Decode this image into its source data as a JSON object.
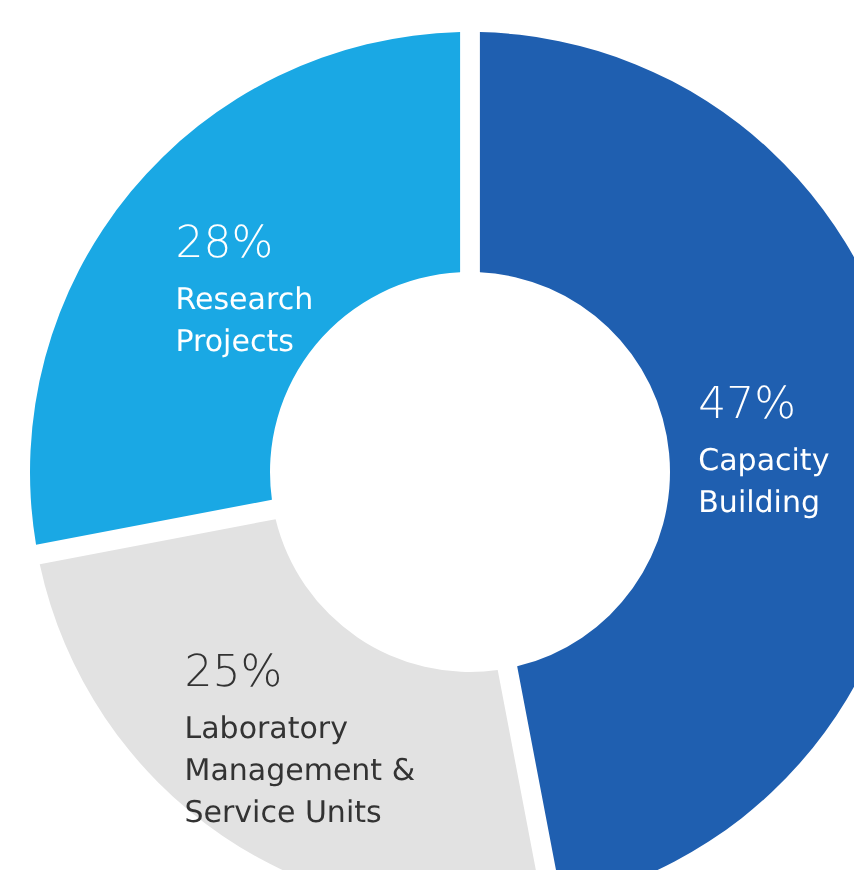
{
  "chart_data": {
    "type": "donut",
    "categories": [
      "Capacity Building",
      "Laboratory Management & Service Units",
      "Research Projects"
    ],
    "values": [
      47,
      25,
      28
    ],
    "colors": [
      "#1f5fb0",
      "#e2e2e2",
      "#1aa8e4"
    ],
    "value_labels": [
      "47%",
      "25%",
      "28%"
    ]
  }
}
